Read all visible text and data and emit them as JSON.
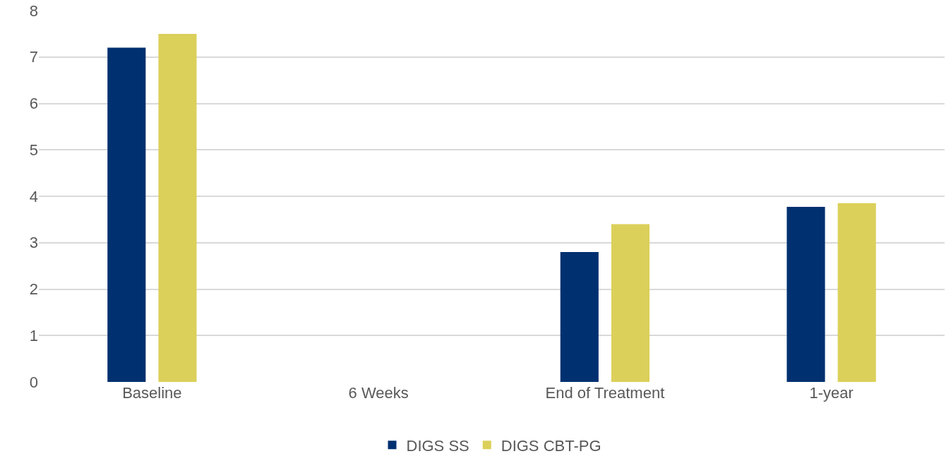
{
  "chart_data": {
    "type": "bar",
    "categories": [
      "Baseline",
      "6 Weeks",
      "End of Treatment",
      "1-year"
    ],
    "series": [
      {
        "name": "DIGS SS",
        "color": "#003070",
        "values": [
          7.2,
          null,
          2.8,
          3.77
        ]
      },
      {
        "name": "DIGS CBT-PG",
        "color": "#dbd05a",
        "values": [
          7.5,
          null,
          3.4,
          3.85
        ]
      }
    ],
    "ylim": [
      0,
      8
    ],
    "yticks": [
      0,
      1,
      2,
      3,
      4,
      5,
      6,
      7,
      8
    ],
    "grid": "y",
    "legend": "bottom"
  }
}
